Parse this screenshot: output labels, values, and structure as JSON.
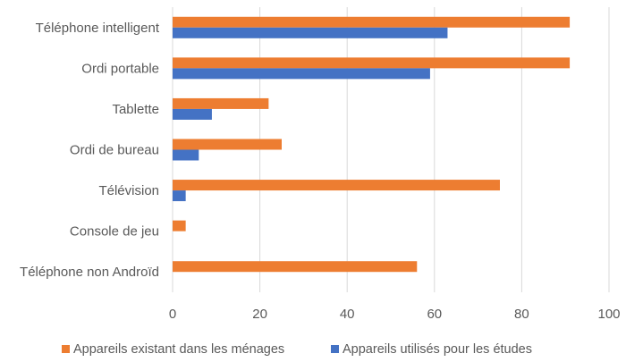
{
  "chart_data": {
    "type": "bar",
    "orientation": "horizontal",
    "categories": [
      "Téléphone intelligent",
      "Ordi portable",
      "Tablette",
      "Ordi de bureau",
      "Télévision",
      "Console de jeu",
      "Téléphone non Androïd"
    ],
    "series": [
      {
        "name": "Appareils existant dans les ménages",
        "color": "#ED7D31",
        "values": [
          91,
          91,
          22,
          25,
          75,
          3,
          56
        ]
      },
      {
        "name": "Appareils utilisés pour les études",
        "color": "#4472C4",
        "values": [
          63,
          59,
          9,
          6,
          3,
          0,
          0
        ]
      }
    ],
    "xlim": [
      0,
      100
    ],
    "xticks": [
      "0",
      "20",
      "40",
      "60",
      "80",
      "100"
    ],
    "title": "",
    "xlabel": "",
    "ylabel": "",
    "grid": "vertical",
    "legend_position": "bottom"
  }
}
